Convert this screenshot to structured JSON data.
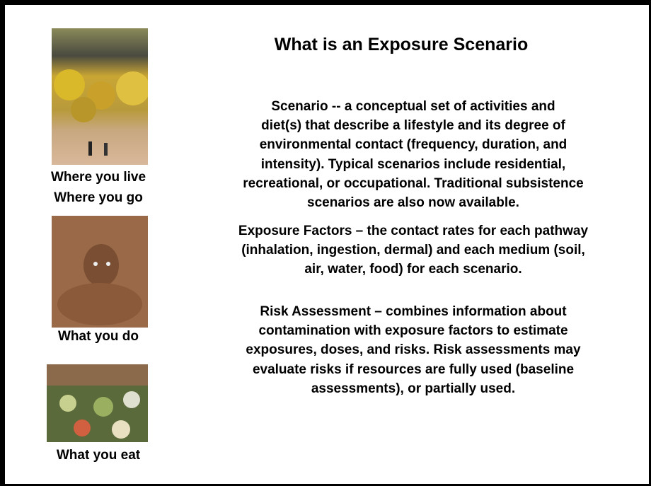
{
  "title": "What is an Exposure Scenario",
  "images": [
    {
      "caption": [
        "Where you live",
        "Where you go"
      ]
    },
    {
      "caption": [
        "What you do"
      ]
    },
    {
      "caption": [
        "What you eat"
      ]
    }
  ],
  "paragraphs": [
    [
      "Scenario -- a conceptual set of activities and",
      "diet(s) that describe a lifestyle and its degree of",
      "environmental contact (frequency, duration, and",
      "intensity).  Typical scenarios include residential,",
      "recreational, or occupational.   Traditional subsistence",
      "scenarios are also now available."
    ],
    [
      "Exposure Factors – the contact rates for each pathway",
      "(inhalation, ingestion, dermal) and each medium (soil,",
      "air, water, food) for each scenario."
    ],
    [
      "Risk Assessment – combines information about",
      "contamination with exposure factors to estimate",
      "exposures, doses, and risks.  Risk assessments may",
      "evaluate risks if resources are fully used (baseline",
      "assessments), or partially used."
    ]
  ]
}
